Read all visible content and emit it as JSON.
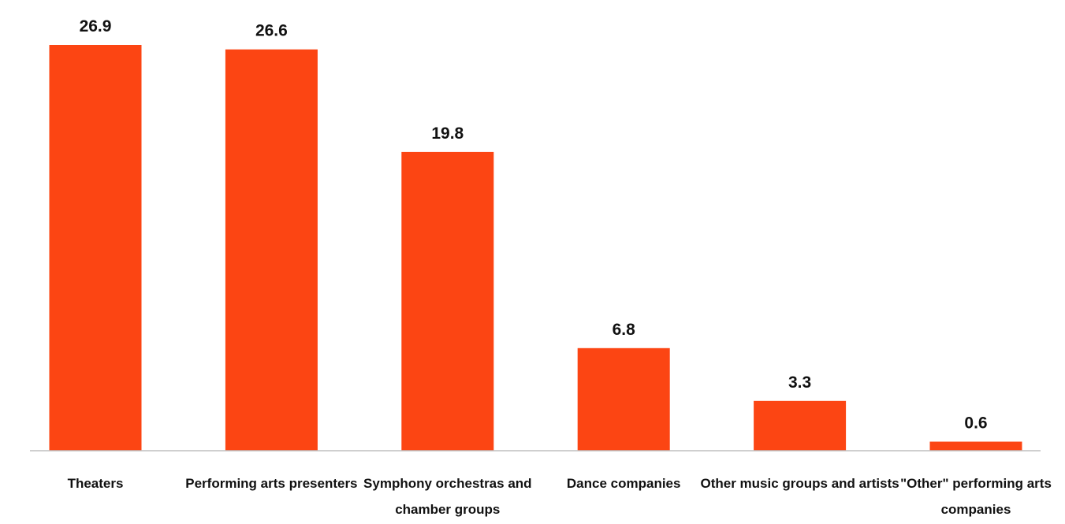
{
  "chart_data": {
    "type": "bar",
    "categories": [
      [
        "Theaters"
      ],
      [
        "Performing arts presenters"
      ],
      [
        "Symphony orchestras and",
        "chamber groups"
      ],
      [
        "Dance companies"
      ],
      [
        "Other music groups and artists"
      ],
      [
        "\"Other\" performing arts",
        "companies"
      ]
    ],
    "values": [
      26.9,
      26.6,
      19.8,
      6.8,
      3.3,
      0.6
    ],
    "data_labels": [
      "26.9",
      "26.6",
      "19.8",
      "6.8",
      "3.3",
      "0.6"
    ],
    "title": "",
    "xlabel": "",
    "ylabel": "",
    "ylim": [
      0,
      26.9
    ],
    "grid": false,
    "legend": "none",
    "colors": {
      "bar": "#FC4513",
      "axis": "#BFBFBF",
      "text": "#111111"
    }
  }
}
